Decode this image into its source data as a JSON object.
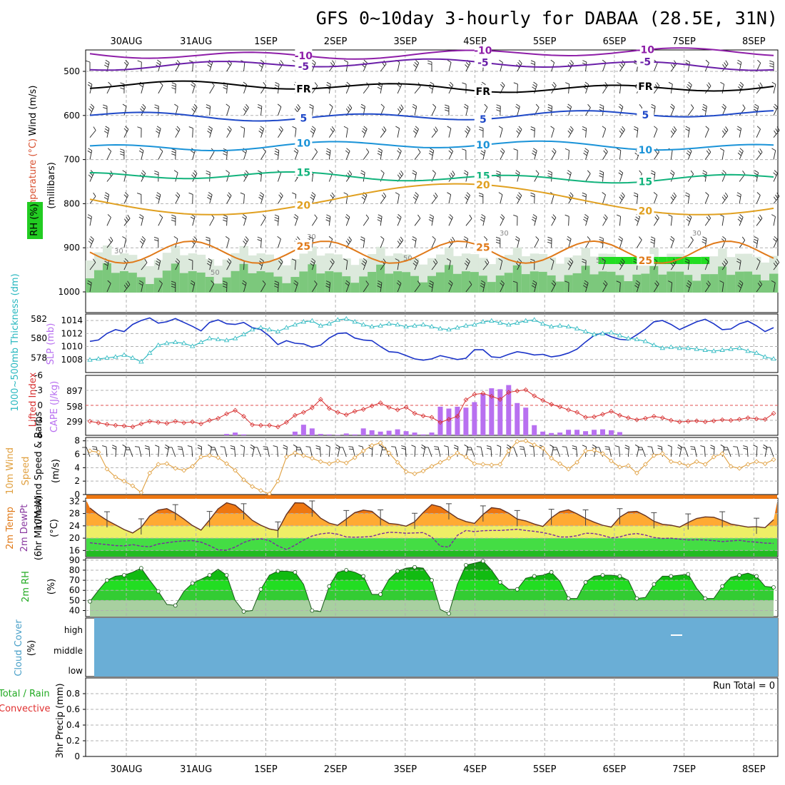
{
  "title": "GFS 0~10day 3-hourly for DABAA (28.5E, 31N)",
  "dates": [
    "30AUG",
    "31AUG",
    "1SEP",
    "2SEP",
    "3SEP",
    "4SEP",
    "5SEP",
    "6SEP",
    "7SEP",
    "8SEP"
  ],
  "colors": {
    "temp_m10": "#8e1ea8",
    "temp_m5": "#6a1fa8",
    "temp_fr": "#000000",
    "temp_5": "#1f49c8",
    "temp_10": "#1a93d8",
    "temp_15": "#12b37c",
    "temp_20": "#e0a020",
    "temp_25": "#e07a1a",
    "slp": "#1a33c8",
    "thickness": "#2ab8c0",
    "lifted": "#d83030",
    "cape": "#b870f0",
    "wind": "#e0a040",
    "rh_fill": "#22cc22",
    "cloud": "#6aaed6",
    "grid": "#b0b0b0"
  },
  "chart_data": [
    {
      "type": "contour",
      "name": "upper-air",
      "ylabel_wind": "Wind (m/s)",
      "ylabel_temp": "Temperature (°C)",
      "ylabel_unit": "(millibars)",
      "ylabel_rh": "RH (%)",
      "yticks": [
        "500",
        "600",
        "700",
        "800",
        "900",
        "1000"
      ],
      "contours": [
        {
          "label": "-10",
          "level": 460,
          "color": "temp_m10"
        },
        {
          "label": "-5",
          "level": 485,
          "color": "temp_m5"
        },
        {
          "label": "FR",
          "level": 535,
          "color": "temp_fr"
        },
        {
          "label": "5",
          "level": 600,
          "color": "temp_5"
        },
        {
          "label": "10",
          "level": 670,
          "color": "temp_10"
        },
        {
          "label": "15",
          "level": 740,
          "color": "temp_15"
        },
        {
          "label": "20",
          "level": 810,
          "color": "temp_20"
        },
        {
          "label": "25",
          "level": 910,
          "color": "temp_25"
        }
      ],
      "rh_labels": [
        "30",
        "50",
        "30",
        "50",
        "30",
        "50",
        "30"
      ]
    },
    {
      "type": "line",
      "name": "slp-thickness",
      "ylabel_left": "1000~500mb Thickness (dm)",
      "ylabel_right": "SLP (mb)",
      "left_ticks": [
        "582",
        "580",
        "578"
      ],
      "right_ticks": [
        "1014",
        "1012",
        "1010",
        "1008"
      ],
      "ylim_slp": [
        1006,
        1015
      ],
      "slp": [
        1010.8,
        1011,
        1012,
        1012.6,
        1012.3,
        1013.4,
        1014,
        1014.4,
        1013.6,
        1013.8,
        1014.3,
        1013.7,
        1013.1,
        1012.4,
        1013.7,
        1014.1,
        1013.5,
        1013.4,
        1013.7,
        1012.9,
        1012.6,
        1011.6,
        1010.3,
        1010.9,
        1010.5,
        1010.4,
        1009.9,
        1010.2,
        1011.3,
        1012,
        1012.1,
        1011.3,
        1011,
        1010.9,
        1010,
        1009.2,
        1009.1,
        1008.6,
        1008.1,
        1007.9,
        1008.1,
        1008.6,
        1008.3,
        1008,
        1008.2,
        1009.5,
        1009.5,
        1008.4,
        1008.3,
        1008.8,
        1009.2,
        1009,
        1008.7,
        1008.8,
        1008.4,
        1008.6,
        1009,
        1009.6,
        1010.7,
        1011.7,
        1012.1,
        1011.5,
        1011.1,
        1011,
        1011.8,
        1012.7,
        1013.8,
        1014,
        1013.4,
        1012.6,
        1013.2,
        1013.8,
        1014.2,
        1013.5,
        1012.6,
        1012.7,
        1013.5,
        1013.9,
        1013.2,
        1012.3,
        1012.9
      ],
      "ylim_thick": [
        576.5,
        582.5
      ],
      "thickness": [
        577.8,
        577.9,
        578,
        578.1,
        578.3,
        578,
        577.6,
        578.5,
        579.3,
        579.5,
        579.6,
        579.5,
        579.2,
        579.6,
        580,
        579.9,
        579.8,
        580,
        580.4,
        580.9,
        581.1,
        580.9,
        580.7,
        581.1,
        581.4,
        581.7,
        581.8,
        581.3,
        581.5,
        581.9,
        582,
        581.7,
        581.4,
        581.2,
        581.3,
        581.5,
        581.4,
        581.2,
        581.3,
        581.4,
        581.2,
        581,
        580.9,
        581.1,
        581.3,
        581.4,
        581.7,
        581.8,
        581.6,
        581.4,
        581.6,
        581.8,
        581.9,
        581.5,
        581.2,
        581.3,
        581.2,
        581,
        580.7,
        580.4,
        580.5,
        580.6,
        580.3,
        580,
        579.9,
        579.7,
        579.3,
        579,
        579.1,
        579,
        579,
        578.9,
        578.8,
        578.7,
        578.8,
        578.9,
        579,
        578.7,
        578.5,
        578.1,
        577.9
      ]
    },
    {
      "type": "bar+line",
      "name": "cape-lifted",
      "ylabel_left": "Lifted Index",
      "ylabel_right": "CAPE (J/kg)",
      "li_ticks": [
        "-6",
        "-3",
        "0",
        "3",
        "6"
      ],
      "cape_ticks": [
        "897",
        "598",
        "299"
      ],
      "ylim_li": [
        6,
        -6
      ],
      "lifted_index": [
        3.2,
        3.5,
        3.8,
        4,
        4.1,
        4.3,
        3.7,
        3.2,
        3.4,
        3.6,
        3.2,
        3.5,
        3.3,
        3.7,
        3,
        2.6,
        1.7,
        1,
        2.2,
        3.9,
        4,
        4,
        4.3,
        3.4,
        2,
        1.4,
        0.5,
        -1.2,
        0.6,
        1.4,
        1.9,
        1.2,
        0.8,
        0.1,
        -0.5,
        0.4,
        0.9,
        0.4,
        1.6,
        2.1,
        2.4,
        3.4,
        2.8,
        2.2,
        -1.1,
        -2.2,
        -2.4,
        -1.8,
        -1.2,
        -2.6,
        -2.9,
        -3.1,
        -1.9,
        -1,
        -0.2,
        0.3,
        0.9,
        1.4,
        2.4,
        2.3,
        1.8,
        1.2,
        2,
        2.5,
        2.9,
        2.6,
        2.2,
        2.5,
        3,
        3.3,
        3.2,
        3.1,
        3.3,
        3.1,
        2.9,
        3,
        2.8,
        2.5,
        2.7,
        2.8,
        1.6
      ],
      "cape": [
        0,
        0,
        0,
        0,
        0,
        0,
        0,
        0,
        0,
        0,
        0,
        0,
        0,
        0,
        0,
        0,
        30,
        60,
        20,
        0,
        0,
        0,
        0,
        0,
        80,
        230,
        150,
        30,
        20,
        10,
        40,
        20,
        150,
        110,
        80,
        100,
        130,
        90,
        60,
        20,
        60,
        620,
        580,
        620,
        600,
        720,
        900,
        1020,
        1000,
        1090,
        700,
        600,
        220,
        80,
        50,
        60,
        120,
        120,
        90,
        120,
        130,
        110,
        70,
        0,
        0,
        0,
        0,
        0,
        0,
        0,
        0,
        0,
        0,
        0,
        0,
        0,
        0,
        0,
        0,
        0,
        0
      ]
    },
    {
      "type": "line",
      "name": "wind-10m",
      "ylabel": "10m Wind Speed & Barbs",
      "unit": "(m/s)",
      "ticks": [
        "8",
        "6",
        "4",
        "2",
        "0"
      ],
      "ylim": [
        0,
        8.5
      ],
      "speed": [
        6.5,
        6.3,
        3.8,
        2.6,
        2,
        1.3,
        0.3,
        3.2,
        4.5,
        4.6,
        3.9,
        3.6,
        4.2,
        5.6,
        5.8,
        5.5,
        4.6,
        3.6,
        2.2,
        1.2,
        0.6,
        0.1,
        2,
        5.6,
        6.2,
        5.8,
        5.4,
        4.9,
        4.6,
        5,
        4.7,
        5.5,
        6.5,
        7.3,
        7.7,
        6.2,
        4.8,
        3.4,
        3.1,
        3.5,
        4.2,
        4.8,
        5.4,
        6.2,
        5.6,
        4.6,
        4.5,
        4.4,
        4.5,
        6.5,
        7.9,
        8,
        7.4,
        6.9,
        5.4,
        4.6,
        3.8,
        4.8,
        6.5,
        6.6,
        6.1,
        5,
        4.1,
        4.3,
        3.2,
        4.5,
        5.8,
        6.1,
        4.9,
        4.7,
        4.3,
        4.9,
        4.5,
        5.6,
        6.1,
        4.2,
        3.9,
        4.5,
        4.9,
        4.6,
        5.2
      ]
    },
    {
      "type": "area",
      "name": "temp-2m",
      "ylabel": "2m Temp 2m DewPt (6hr Min/Max)",
      "unit": "(°C)",
      "ticks": [
        "32",
        "28",
        "24",
        "20",
        "16"
      ],
      "ylim": [
        14,
        33
      ],
      "temp": [
        29.8,
        27.6,
        25.8,
        24.3,
        22.8,
        21.7,
        23.5,
        27.2,
        29.1,
        29.6,
        28.1,
        26.2,
        24.1,
        22.6,
        25.9,
        29.5,
        31.5,
        30.7,
        28.4,
        25.8,
        24.2,
        23,
        22.5,
        27.7,
        31.5,
        31.4,
        29.3,
        26.5,
        24.9,
        24.2,
        26.2,
        28.3,
        29.1,
        28.7,
        26.4,
        24.8,
        24.5,
        23.9,
        25.3,
        28.3,
        30.9,
        30.2,
        28.4,
        26.5,
        25.4,
        24.8,
        27.7,
        29.9,
        29.5,
        28.1,
        26.2,
        25.6,
        24.6,
        23.8,
        26.6,
        28.6,
        29.2,
        27.9,
        26.4,
        25.2,
        24.2,
        23.6,
        26.8,
        28.5,
        28.7,
        27.3,
        25.5,
        24.5,
        24.2,
        23.6,
        25.1,
        26.4,
        26.9,
        26.8,
        25.8,
        24.6,
        24.1,
        23.6,
        23.7,
        23.4,
        26
      ],
      "dewpt": [
        18.5,
        18.2,
        17.9,
        17.6,
        17.5,
        17.9,
        17.4,
        17.2,
        18.1,
        18.5,
        18.9,
        19.1,
        19.2,
        18.7,
        17.6,
        16.2,
        16.1,
        17.1,
        18.6,
        19.5,
        19.8,
        19.2,
        17.5,
        16.3,
        17.7,
        19.4,
        20.7,
        21.4,
        21.7,
        21.3,
        20.4,
        20.3,
        20.4,
        20.6,
        21.4,
        21.9,
        21.8,
        21.6,
        21.7,
        21.8,
        20.4,
        17.4,
        17.1,
        20.9,
        22.5,
        22.1,
        22.4,
        22.5,
        22.5,
        22.7,
        22.9,
        22.5,
        22.2,
        21.8,
        21.2,
        20.4,
        20.4,
        20.8,
        21.6,
        21.5,
        20.9,
        20.1,
        20.4,
        21.2,
        21.5,
        21,
        20.2,
        19.9,
        20,
        19.7,
        19.4,
        19.5,
        19.4,
        19.2,
        18.9,
        19.1,
        19.3,
        18.9,
        18.7,
        18.4,
        18.3
      ]
    },
    {
      "type": "area",
      "name": "rh-2m",
      "ylabel": "2m RH",
      "unit": "(%)",
      "ticks": [
        "90",
        "80",
        "70",
        "60",
        "50",
        "40"
      ],
      "ylim": [
        34,
        92
      ],
      "rh": [
        49,
        60,
        70,
        74,
        75,
        78,
        82,
        70,
        59,
        46,
        45,
        59,
        67,
        71,
        75,
        81,
        75,
        50,
        39,
        40,
        61,
        75,
        79,
        79,
        78,
        66,
        40,
        39,
        64,
        78,
        80,
        78,
        74,
        56,
        56,
        71,
        79,
        82,
        83,
        82,
        70,
        41,
        37,
        66,
        85,
        87,
        89,
        80,
        68,
        61,
        61,
        72,
        74,
        75,
        78,
        69,
        52,
        52,
        68,
        74,
        75,
        75,
        74,
        70,
        52,
        53,
        66,
        74,
        74,
        75,
        76,
        62,
        52,
        52,
        64,
        73,
        75,
        77,
        74,
        64,
        63
      ]
    },
    {
      "type": "heatmap",
      "name": "cloud-cover",
      "ylabel": "Cloud Cover",
      "unit": "(%)",
      "levels": [
        "high",
        "middle",
        "low"
      ]
    },
    {
      "type": "bar",
      "name": "precip",
      "ylabel": "3hr Precip (mm)",
      "legend_total": "Total / Rain",
      "legend_conv": "Convective",
      "ticks": [
        "0.8",
        "0.6",
        "0.4",
        "0.2",
        "0"
      ],
      "ylim": [
        0,
        1
      ],
      "run_total": "Run Total = 0",
      "values": []
    }
  ]
}
